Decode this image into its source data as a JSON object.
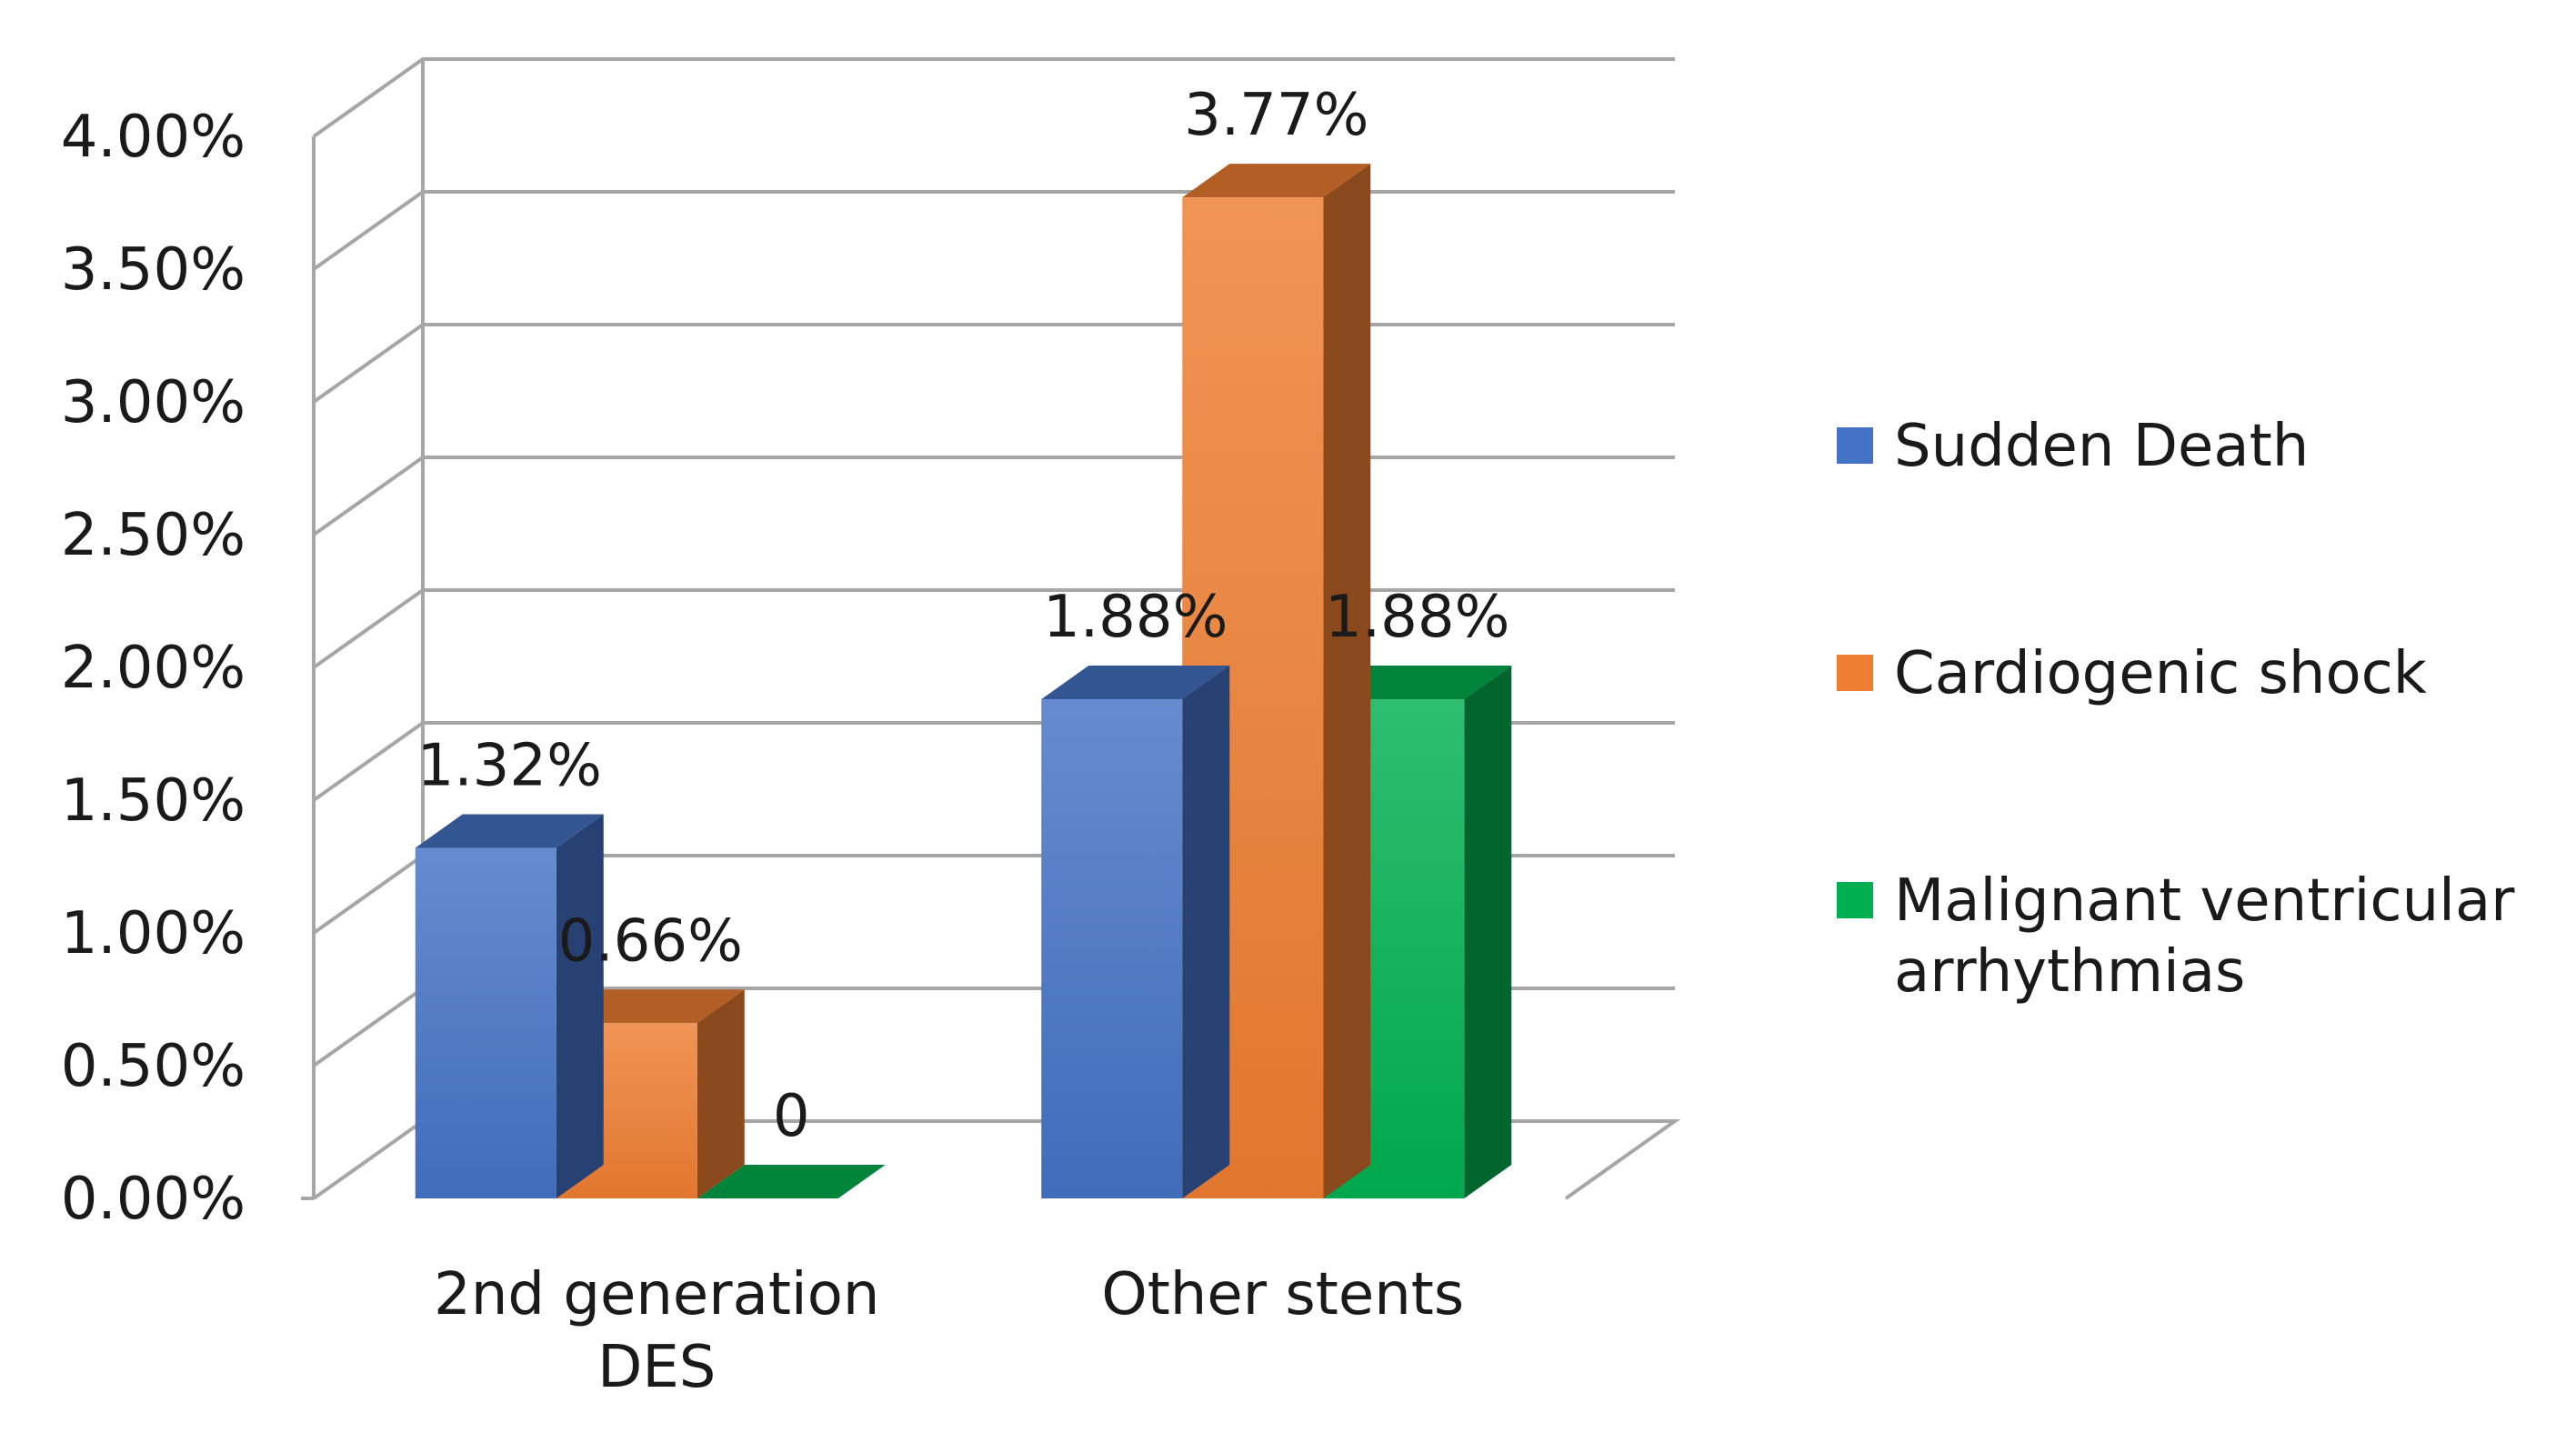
{
  "chart_data": {
    "type": "bar",
    "style": "3d-clustered-column",
    "title": "",
    "xlabel": "",
    "ylabel": "",
    "categories": [
      [
        "2nd generation",
        "DES"
      ],
      [
        "Other stents"
      ]
    ],
    "series": [
      {
        "name": "Sudden Death",
        "values": [
          1.32,
          1.88
        ],
        "labels": [
          "1.32%",
          "1.88%"
        ],
        "color": "#4472C4"
      },
      {
        "name": "Cardiogenic shock",
        "values": [
          0.66,
          3.77
        ],
        "labels": [
          "0.66%",
          "3.77%"
        ],
        "color": "#ED7D31"
      },
      {
        "name": "Malignant ventricular arrhythmias",
        "legend_lines": [
          "Malignant ventricular",
          "arrhythmias"
        ],
        "values": [
          0,
          1.88
        ],
        "labels": [
          "0",
          "1.88%"
        ],
        "color": "#00B050"
      }
    ],
    "ylim": [
      0,
      4
    ],
    "yticks": [
      0,
      0.5,
      1,
      1.5,
      2,
      2.5,
      3,
      3.5,
      4
    ],
    "ytick_labels": [
      "0.00%",
      "0.50%",
      "1.00%",
      "1.50%",
      "2.00%",
      "2.50%",
      "3.00%",
      "3.50%",
      "4.00%"
    ],
    "grid": true,
    "legend_position": "right"
  }
}
